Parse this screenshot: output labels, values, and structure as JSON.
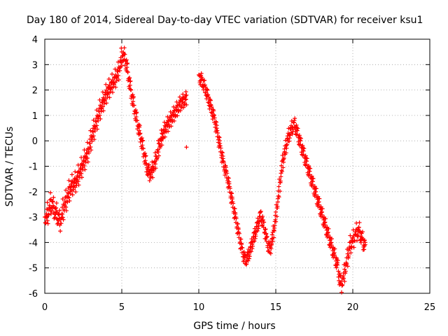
{
  "chart_data": {
    "type": "scatter",
    "title": "Day 180 of 2014, Sidereal Day-to-day VTEC variation (SDTVAR) for receiver ksu1",
    "xlabel": "GPS time / hours",
    "ylabel": "SDTVAR / TECUs",
    "xlim": [
      0,
      25
    ],
    "ylim": [
      -6,
      4
    ],
    "xticks": [
      "0",
      "5",
      "10",
      "15",
      "20",
      "25"
    ],
    "yticks": [
      "-6",
      "-5",
      "-4",
      "-3",
      "-2",
      "-1",
      "0",
      "1",
      "2",
      "3",
      "4"
    ],
    "grid": true,
    "marker": "+",
    "series_color": "#ff0000",
    "series": [
      {
        "name": "ksu1",
        "x": [
          0.0,
          0.2,
          0.4,
          0.6,
          0.8,
          1.0,
          1.2,
          1.4,
          1.6,
          1.8,
          2.0,
          2.2,
          2.4,
          2.6,
          2.8,
          3.0,
          3.2,
          3.4,
          3.6,
          3.8,
          4.0,
          4.2,
          4.4,
          4.6,
          4.8,
          5.0,
          5.2,
          5.4,
          5.6,
          5.8,
          6.0,
          6.2,
          6.4,
          6.6,
          6.8,
          7.0,
          7.2,
          7.4,
          7.6,
          7.8,
          8.0,
          8.2,
          8.4,
          8.6,
          8.8,
          9.0,
          9.2,
          10.0,
          10.2,
          10.4,
          10.6,
          10.8,
          11.0,
          11.2,
          11.4,
          11.6,
          11.8,
          12.0,
          12.2,
          12.4,
          12.6,
          12.8,
          13.0,
          13.2,
          13.4,
          13.6,
          13.8,
          14.0,
          14.2,
          14.4,
          14.6,
          14.8,
          15.0,
          15.2,
          15.4,
          15.6,
          15.8,
          16.0,
          16.2,
          16.4,
          16.6,
          16.8,
          17.0,
          17.2,
          17.4,
          17.6,
          17.8,
          18.0,
          18.2,
          18.4,
          18.6,
          18.8,
          19.0,
          19.2,
          19.4,
          19.6,
          19.8,
          20.0,
          20.2,
          20.4,
          20.6,
          20.8
        ],
        "y": [
          -3.0,
          -2.7,
          -2.3,
          -2.6,
          -2.8,
          -3.1,
          -2.5,
          -2.2,
          -1.8,
          -1.6,
          -1.5,
          -1.2,
          -0.9,
          -0.6,
          -0.3,
          0.2,
          0.6,
          1.0,
          1.4,
          1.7,
          2.0,
          2.2,
          2.4,
          2.6,
          2.9,
          3.5,
          3.4,
          2.7,
          2.0,
          1.4,
          0.8,
          0.3,
          -0.3,
          -0.9,
          -1.2,
          -1.0,
          -0.6,
          -0.1,
          0.3,
          0.6,
          0.8,
          1.0,
          1.2,
          1.4,
          1.6,
          1.7,
          1.8,
          2.6,
          2.5,
          2.2,
          1.8,
          1.4,
          1.0,
          0.4,
          -0.2,
          -0.8,
          -1.2,
          -1.8,
          -2.4,
          -3.0,
          -3.6,
          -4.2,
          -4.6,
          -4.4,
          -4.0,
          -3.6,
          -3.2,
          -2.8,
          -3.2,
          -3.8,
          -4.2,
          -3.6,
          -2.8,
          -1.8,
          -0.8,
          -0.2,
          0.3,
          0.6,
          0.8,
          0.4,
          0.0,
          -0.4,
          -0.8,
          -1.2,
          -1.6,
          -2.0,
          -2.4,
          -2.8,
          -3.2,
          -3.6,
          -4.0,
          -4.4,
          -4.8,
          -5.6,
          -5.2,
          -4.6,
          -4.0,
          -3.8,
          -3.5,
          -3.4,
          -3.8,
          -4.0
        ]
      }
    ],
    "outliers": [
      {
        "x": 9.2,
        "y": -0.25
      }
    ]
  }
}
